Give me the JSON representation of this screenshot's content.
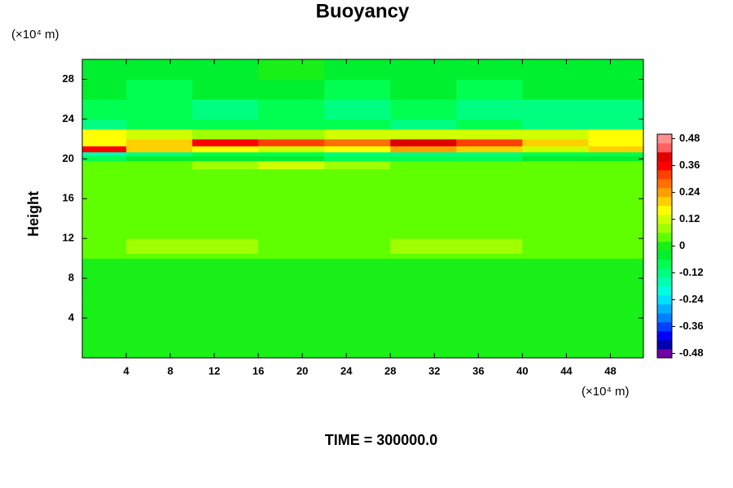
{
  "chart_data": {
    "type": "heatmap",
    "title": "Buoyancy",
    "ylabel": "Height",
    "xlabel": "TIME = 300000.0",
    "x_unit": "(×10⁴ m)",
    "y_unit": "(×10⁴ m)",
    "xlim": [
      0,
      51
    ],
    "ylim": [
      0,
      30
    ],
    "xticks": [
      4,
      8,
      12,
      16,
      20,
      24,
      28,
      32,
      36,
      40,
      44,
      48
    ],
    "yticks": [
      4,
      8,
      12,
      16,
      20,
      24,
      28
    ],
    "x_bins": [
      0,
      4,
      10,
      16,
      22,
      28,
      34,
      40,
      46,
      51
    ],
    "y_bins": [
      0,
      10,
      10.5,
      12,
      19,
      19.8,
      20.3,
      20.7,
      21.3,
      22,
      23,
      24,
      26,
      28,
      30
    ],
    "z": [
      [
        0,
        0,
        0,
        0,
        0,
        0,
        0,
        0,
        0
      ],
      [
        0.02,
        0.02,
        0.02,
        0.02,
        0.02,
        0.02,
        0.02,
        0.02,
        0.02
      ],
      [
        0.04,
        0.08,
        0.06,
        0.04,
        0.02,
        0.08,
        0.06,
        0.02,
        0.04
      ],
      [
        0.02,
        0.02,
        0.04,
        0.04,
        0.02,
        0.02,
        0.04,
        0.02,
        0.02
      ],
      [
        0.04,
        0.04,
        0.06,
        0.12,
        0.06,
        0.04,
        0.04,
        0.04,
        0.04
      ],
      [
        -0.08,
        -0.06,
        -0.06,
        -0.04,
        -0.08,
        -0.08,
        -0.08,
        -0.06,
        -0.04
      ],
      [
        -0.16,
        -0.12,
        -0.1,
        -0.08,
        -0.12,
        -0.14,
        -0.12,
        -0.1,
        -0.08
      ],
      [
        0.36,
        0.2,
        0.16,
        0.12,
        0.16,
        0.24,
        0.2,
        0.12,
        0.2
      ],
      [
        0.16,
        0.2,
        0.36,
        0.32,
        0.28,
        0.4,
        0.32,
        0.2,
        0.16
      ],
      [
        0.16,
        0.12,
        0.08,
        0.08,
        0.12,
        0.12,
        0.1,
        0.12,
        0.16
      ],
      [
        -0.12,
        -0.1,
        -0.08,
        -0.1,
        -0.1,
        -0.12,
        -0.1,
        -0.12,
        -0.12
      ],
      [
        -0.1,
        -0.1,
        -0.12,
        -0.1,
        -0.12,
        -0.1,
        -0.12,
        -0.14,
        -0.12
      ],
      [
        -0.06,
        -0.08,
        -0.06,
        -0.06,
        -0.08,
        -0.06,
        -0.08,
        -0.06,
        -0.06
      ],
      [
        -0.04,
        -0.04,
        -0.04,
        -0.02,
        -0.04,
        -0.04,
        -0.04,
        -0.04,
        -0.04
      ]
    ],
    "clim": [
      -0.5,
      0.5
    ],
    "colorbar_ticks": [
      -0.48,
      -0.36,
      -0.24,
      -0.12,
      0,
      0.12,
      0.24,
      0.36,
      0.48
    ],
    "colors": [
      "#7000a0",
      "#0000b0",
      "#0000ff",
      "#0040ff",
      "#0080ff",
      "#00b0ff",
      "#00e0ff",
      "#00ffe0",
      "#00ffb0",
      "#00ff80",
      "#00ff50",
      "#00f030",
      "#18f018",
      "#60ff00",
      "#a0ff00",
      "#d0ff00",
      "#ffff00",
      "#ffd000",
      "#ffa000",
      "#ff7000",
      "#ff4000",
      "#ff0000",
      "#e00000",
      "#ff6060",
      "#ff9090"
    ]
  }
}
